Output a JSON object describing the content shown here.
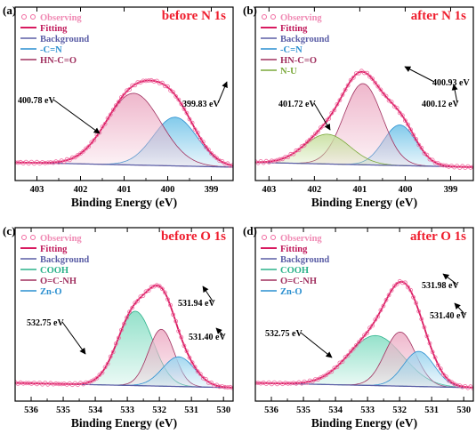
{
  "chart_data": [
    {
      "type": "line",
      "panel_label": "(a)",
      "title": "before  N 1s",
      "xlabel": "Binding Energy (eV)",
      "xlim": [
        403.5,
        398.5
      ],
      "x_ticks": [
        "403",
        "402",
        "401",
        "400",
        "399"
      ],
      "grid": false,
      "legend_position": "top-left",
      "series": [
        {
          "name": "Observing",
          "kind": "observed",
          "color": "#f06aa0"
        },
        {
          "name": "Fitting",
          "kind": "fit",
          "color": "#d81b60"
        },
        {
          "name": "Background",
          "kind": "background",
          "color": "#5b5ea6"
        },
        {
          "name": "-C=N",
          "kind": "peak",
          "center": 399.83,
          "height": 0.36,
          "width": 0.5,
          "fill": "#7cc8ea",
          "stroke": "#2a8fd0",
          "annotation": "399.83 eV"
        },
        {
          "name": "HN-C=O",
          "kind": "peak",
          "center": 400.78,
          "height": 0.53,
          "width": 0.62,
          "fill": "#eeb3c9",
          "stroke": "#a0305f",
          "annotation": "400.78 eV"
        }
      ]
    },
    {
      "type": "line",
      "panel_label": "(b)",
      "title": "after  N 1s",
      "xlabel": "Binding Energy (eV)",
      "xlim": [
        403.3,
        398.5
      ],
      "x_ticks": [
        "403",
        "402",
        "401",
        "400",
        "399"
      ],
      "grid": false,
      "legend_position": "top-left",
      "series": [
        {
          "name": "Observing",
          "kind": "observed",
          "color": "#f06aa0"
        },
        {
          "name": "Fitting",
          "kind": "fit",
          "color": "#d81b60"
        },
        {
          "name": "Background",
          "kind": "background",
          "color": "#5b5ea6"
        },
        {
          "name": "-C=N",
          "kind": "peak",
          "center": 400.12,
          "height": 0.3,
          "width": 0.36,
          "fill": "#7cc8ea",
          "stroke": "#2a8fd0",
          "annotation": "400.12 eV"
        },
        {
          "name": "HN-C=O",
          "kind": "peak",
          "center": 400.93,
          "height": 0.6,
          "width": 0.42,
          "fill": "#eeb3c9",
          "stroke": "#a0305f",
          "annotation": "400.93 eV"
        },
        {
          "name": "N-U",
          "kind": "peak",
          "center": 401.72,
          "height": 0.22,
          "width": 0.5,
          "fill": "#c9e0a2",
          "stroke": "#7aa83a",
          "annotation": "401.72 eV"
        }
      ]
    },
    {
      "type": "line",
      "panel_label": "(c)",
      "title": "before  O 1s",
      "xlabel": "Binding Energy (eV)",
      "xlim": [
        536.5,
        529.7
      ],
      "x_ticks": [
        "536",
        "535",
        "534",
        "533",
        "532",
        "531",
        "530"
      ],
      "grid": false,
      "legend_position": "top-left",
      "series": [
        {
          "name": "Observing",
          "kind": "observed",
          "color": "#f06aa0"
        },
        {
          "name": "Fitting",
          "kind": "fit",
          "color": "#d81b60"
        },
        {
          "name": "Background",
          "kind": "background",
          "color": "#5b5ea6"
        },
        {
          "name": "COOH",
          "kind": "peak",
          "center": 532.75,
          "height": 0.55,
          "width": 0.55,
          "fill": "#8fe0c8",
          "stroke": "#2bb28a",
          "annotation": "532.75 eV"
        },
        {
          "name": "O=C-NH",
          "kind": "peak",
          "center": 531.94,
          "height": 0.42,
          "width": 0.4,
          "fill": "#eeb3c9",
          "stroke": "#a0305f",
          "annotation": "531.94 eV"
        },
        {
          "name": "Zn-O",
          "kind": "peak",
          "center": 531.4,
          "height": 0.22,
          "width": 0.5,
          "fill": "#9fd6ef",
          "stroke": "#2a8fd0",
          "annotation": "531.40 eV"
        }
      ]
    },
    {
      "type": "line",
      "panel_label": "(d)",
      "title": "after  O 1s",
      "xlabel": "Binding Energy (eV)",
      "xlim": [
        536.5,
        529.7
      ],
      "x_ticks": [
        "536",
        "535",
        "534",
        "533",
        "532",
        "531",
        "530"
      ],
      "grid": false,
      "legend_position": "top-left",
      "series": [
        {
          "name": "Observing",
          "kind": "observed",
          "color": "#f06aa0"
        },
        {
          "name": "Fitting",
          "kind": "fit",
          "color": "#d81b60"
        },
        {
          "name": "Background",
          "kind": "background",
          "color": "#5b5ea6"
        },
        {
          "name": "COOH",
          "kind": "peak",
          "center": 532.75,
          "height": 0.37,
          "width": 0.85,
          "fill": "#8fe0c8",
          "stroke": "#2bb28a",
          "annotation": "532.75 eV"
        },
        {
          "name": "O=C-NH",
          "kind": "peak",
          "center": 531.98,
          "height": 0.4,
          "width": 0.48,
          "fill": "#eeb3c9",
          "stroke": "#a0305f",
          "annotation": "531.98 eV"
        },
        {
          "name": "Zn-O",
          "kind": "peak",
          "center": 531.4,
          "height": 0.26,
          "width": 0.48,
          "fill": "#9fd6ef",
          "stroke": "#2a8fd0",
          "annotation": "531.40 eV"
        }
      ]
    }
  ]
}
